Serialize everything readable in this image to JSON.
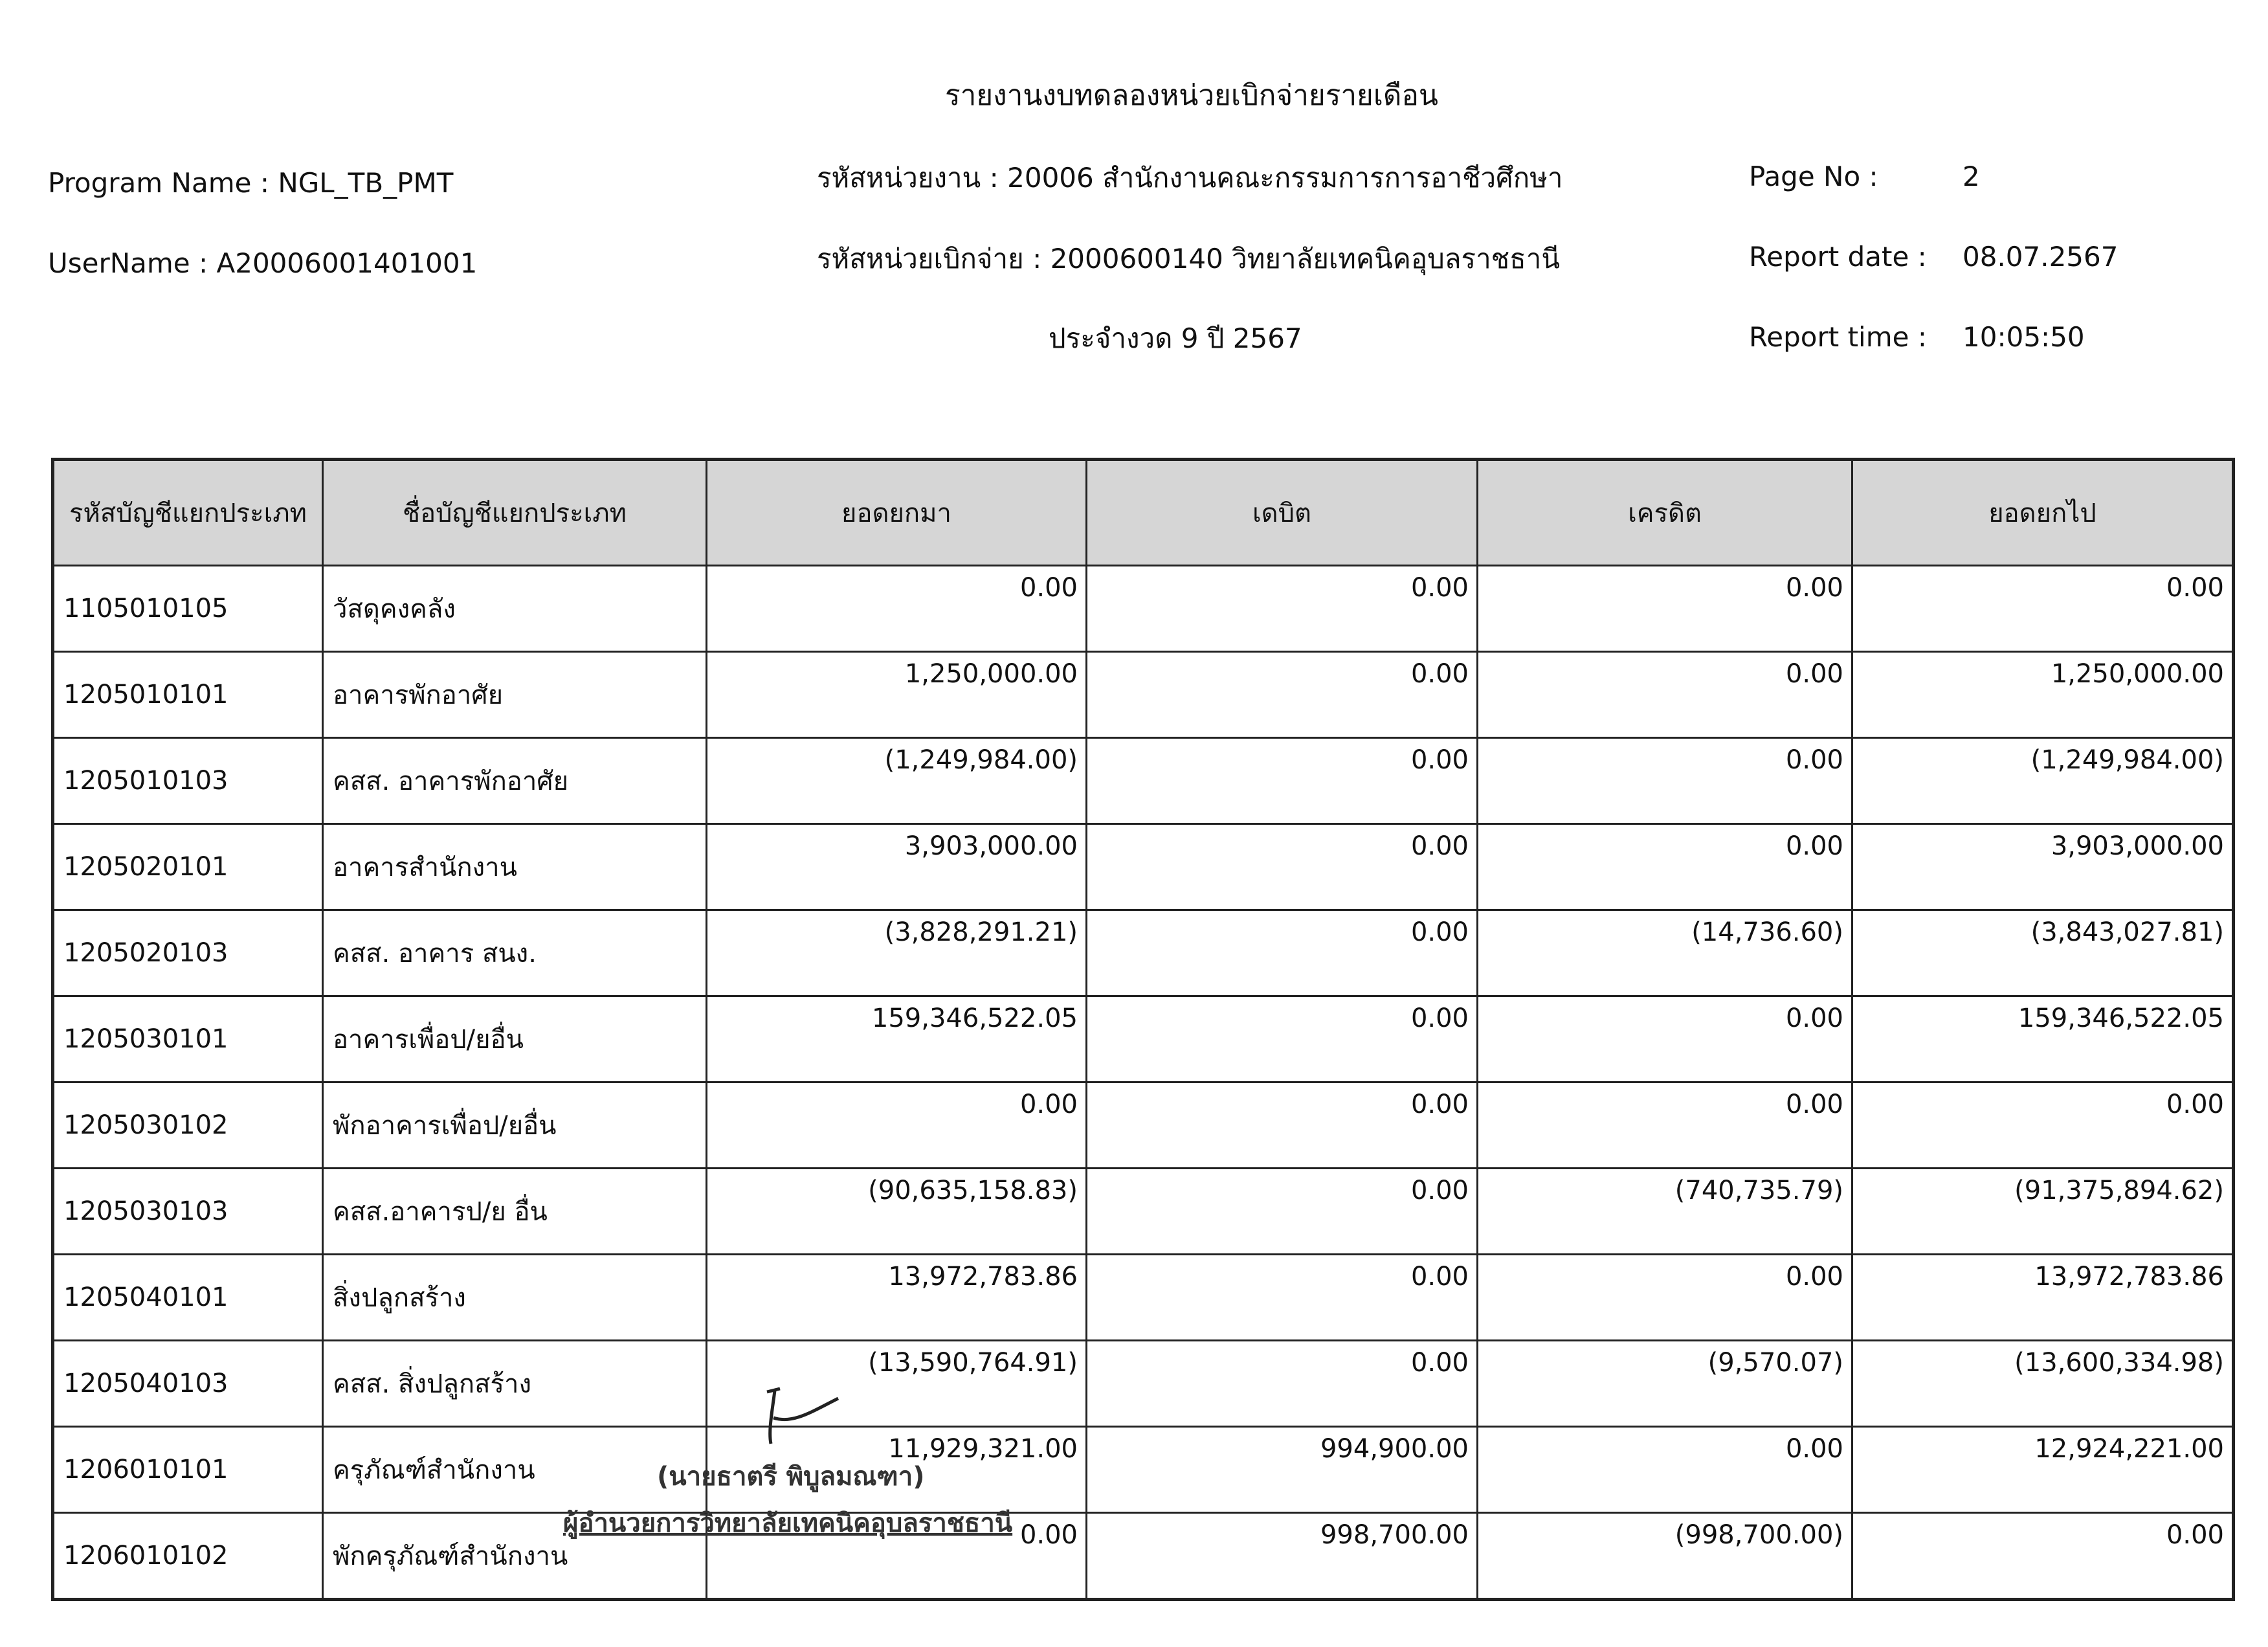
{
  "header": {
    "title": "รายงานงบทดลองหน่วยเบิกจ่ายรายเดือน",
    "program_name": "Program Name : NGL_TB_PMT",
    "user_name": "UserName : A20006001401001",
    "unit": "รหัสหน่วยงาน : 20006 สำนักงานคณะกรรมการการอาชีวศึกษา",
    "disbursing_unit": "รหัสหน่วยเบิกจ่าย : 2000600140 วิทยาลัยเทคนิคอุบลราชธานี",
    "period": "ประจำงวด 9 ปี 2567",
    "page_no_label": "Page No :",
    "page_no": "2",
    "report_date_label": "Report date :",
    "report_date": "08.07.2567",
    "report_time_label": "Report time :",
    "report_time": "10:05:50"
  },
  "table": {
    "columns": [
      "รหัสบัญชีแยกประเภท",
      "ชื่อบัญชีแยกประเภท",
      "ยอดยกมา",
      "เดบิต",
      "เครดิต",
      "ยอดยกไป"
    ],
    "rows": [
      [
        "1105010105",
        "วัสดุคงคลัง",
        "0.00",
        "0.00",
        "0.00",
        "0.00"
      ],
      [
        "1205010101",
        "อาคารพักอาศัย",
        "1,250,000.00",
        "0.00",
        "0.00",
        "1,250,000.00"
      ],
      [
        "1205010103",
        "คสส. อาคารพักอาศัย",
        "(1,249,984.00)",
        "0.00",
        "0.00",
        "(1,249,984.00)"
      ],
      [
        "1205020101",
        "อาคารสำนักงาน",
        "3,903,000.00",
        "0.00",
        "0.00",
        "3,903,000.00"
      ],
      [
        "1205020103",
        "คสส. อาคาร สนง.",
        "(3,828,291.21)",
        "0.00",
        "(14,736.60)",
        "(3,843,027.81)"
      ],
      [
        "1205030101",
        "อาคารเพื่อป/ยอื่น",
        "159,346,522.05",
        "0.00",
        "0.00",
        "159,346,522.05"
      ],
      [
        "1205030102",
        "พักอาคารเพื่อป/ยอื่น",
        "0.00",
        "0.00",
        "0.00",
        "0.00"
      ],
      [
        "1205030103",
        "คสส.อาคารป/ย อื่น",
        "(90,635,158.83)",
        "0.00",
        "(740,735.79)",
        "(91,375,894.62)"
      ],
      [
        "1205040101",
        "สิ่งปลูกสร้าง",
        "13,972,783.86",
        "0.00",
        "0.00",
        "13,972,783.86"
      ],
      [
        "1205040103",
        "คสส. สิ่งปลูกสร้าง",
        "(13,590,764.91)",
        "0.00",
        "(9,570.07)",
        "(13,600,334.98)"
      ],
      [
        "1206010101",
        "ครุภัณฑ์สำนักงาน",
        "11,929,321.00",
        "994,900.00",
        "0.00",
        "12,924,221.00"
      ],
      [
        "1206010102",
        "พักครุภัณฑ์สำนักงาน",
        "0.00",
        "998,700.00",
        "(998,700.00)",
        "0.00"
      ]
    ]
  },
  "stamp": {
    "name": "(นายธาตรี  พิบูลมณฑา)",
    "position": "ผู้อำนวยการวิทยาลัยเทคนิคอุบลราชธานี"
  }
}
